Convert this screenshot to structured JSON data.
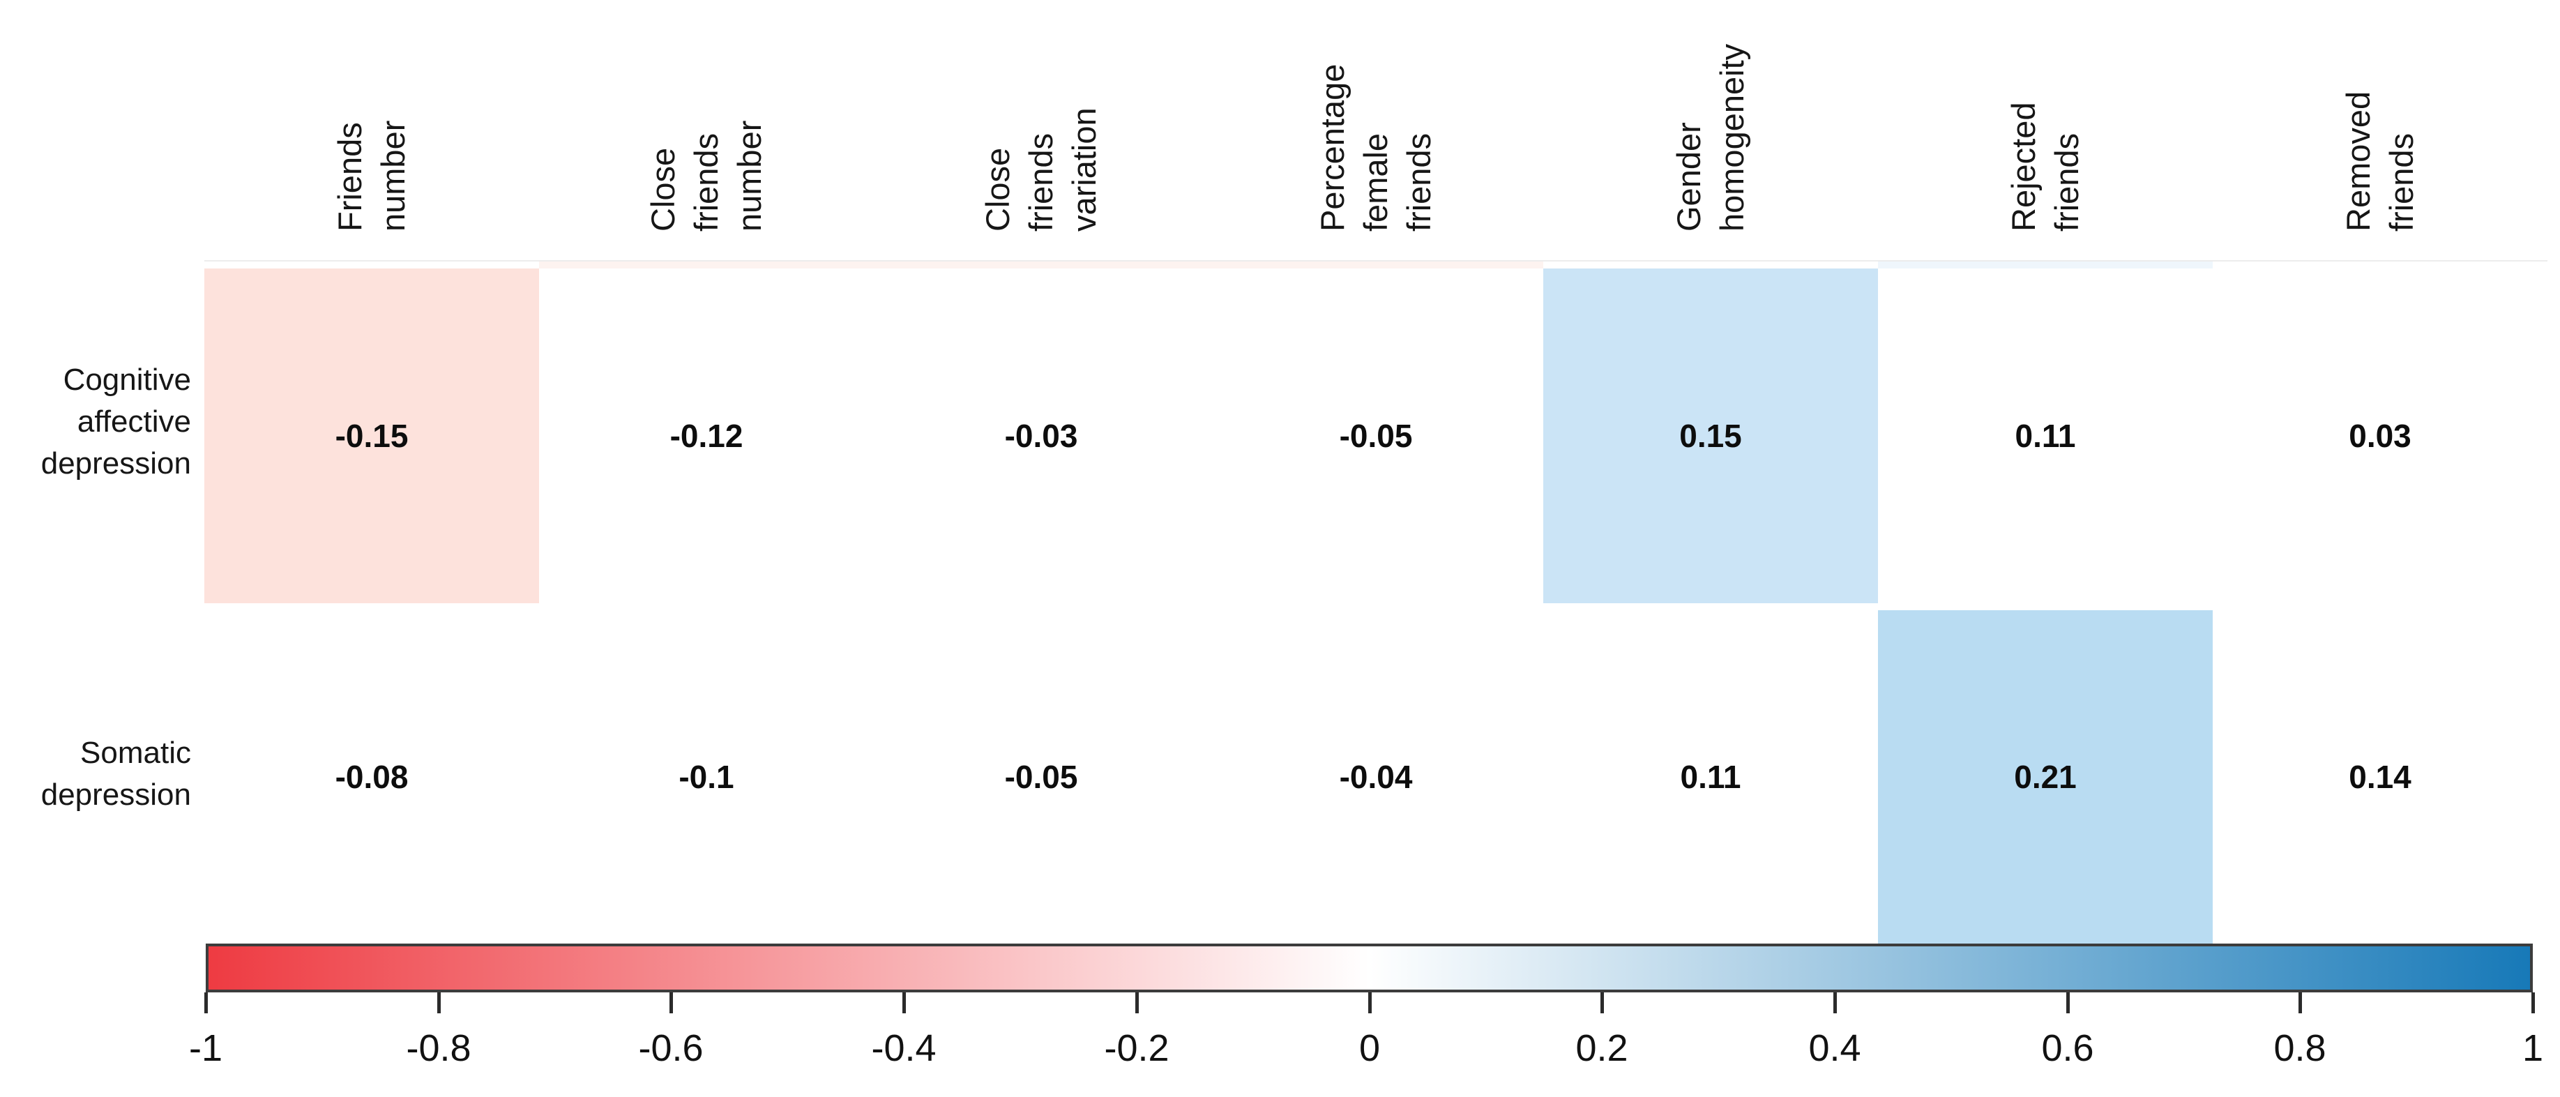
{
  "chart_data": {
    "type": "heatmap",
    "title": "",
    "columns": [
      "Friends\nnumber",
      "Close\nfriends\nnumber",
      "Close\nfriends\nvariation",
      "Percentage\nfemale\nfriends",
      "Gender\nhomogeneity",
      "Rejected\nfriends",
      "Removed\nfriends"
    ],
    "rows": [
      "Cognitive\naffective\ndepression",
      "Somatic\ndepression"
    ],
    "values": [
      [
        -0.15,
        -0.12,
        -0.03,
        -0.05,
        0.15,
        0.11,
        0.03
      ],
      [
        -0.08,
        -0.1,
        -0.05,
        -0.04,
        0.11,
        0.21,
        0.14
      ]
    ],
    "values_display": [
      [
        "-0.15",
        "-0.12",
        "-0.03",
        "-0.05",
        "0.15",
        "0.11",
        "0.03"
      ],
      [
        "-0.08",
        "-0.1",
        "-0.05",
        "-0.04",
        "0.11",
        "0.21",
        "0.14"
      ]
    ],
    "cell_colors": [
      [
        "#fde2dc",
        null,
        null,
        null,
        "#cbe4f6",
        null,
        null
      ],
      [
        null,
        null,
        null,
        null,
        null,
        "#b9dcf2",
        null
      ]
    ],
    "grid": false,
    "legend_position": "bottom",
    "colorbar": {
      "min": -1,
      "max": 1,
      "tick_labels": [
        "-1",
        "-0.8",
        "-0.6",
        "-0.4",
        "-0.2",
        "0",
        "0.2",
        "0.4",
        "0.6",
        "0.8",
        "1"
      ],
      "left_color": "#ee3b42",
      "mid_color": "#ffffff",
      "right_color": "#1779b8"
    }
  }
}
